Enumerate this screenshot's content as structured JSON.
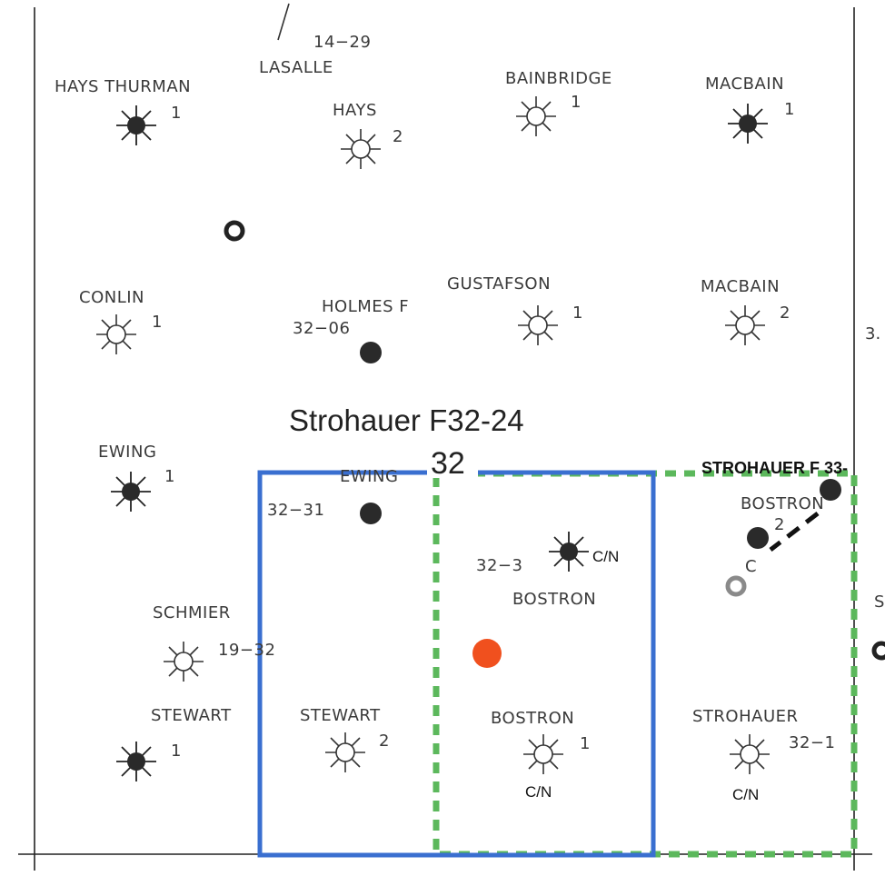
{
  "title": "Strohauer F32-24",
  "section_number": "32",
  "top_labels": {
    "township": "14−29",
    "lasalle": "LASALLE"
  },
  "edge_labels": {
    "right_top": "3.",
    "right_mid": "S"
  },
  "labels": {
    "hays_thurman": "HAYS THURMAN",
    "hays_thurman_num": "1",
    "hays": "HAYS",
    "hays_num": "2",
    "bainbridge": "BAINBRIDGE",
    "bainbridge_num": "1",
    "macbain_1": "MACBAIN",
    "macbain_1_num": "1",
    "conlin": "CONLIN",
    "conlin_num": "1",
    "holmes": "HOLMES F",
    "holmes_num": "32−06",
    "gustafson": "GUSTAFSON",
    "gustafson_num": "1",
    "macbain_2": "MACBAIN",
    "macbain_2_num": "2",
    "ewing_1": "EWING",
    "ewing_1_num": "1",
    "ewing_2": "EWING",
    "ewing_2_num": "32−31",
    "strohauer_f33": "STROHAUER F 33-",
    "bostron_right": "BOSTRON",
    "bostron_right_num": "2",
    "bostron_32_3_num": "32−3",
    "bostron_32_3_cn": "C/N",
    "bostron_32_3": "BOSTRON",
    "schmier": "SCHMIER",
    "schmier_num": "19−32",
    "stewart_1": "STEWART",
    "stewart_1_num": "1",
    "stewart_2": "STEWART",
    "stewart_2_num": "2",
    "bostron_1": "BOSTRON",
    "bostron_1_num": "1",
    "bostron_1_cn": "C/N",
    "strohauer": "STROHAUER",
    "strohauer_num": "32−1",
    "strohauer_cn": "C/N",
    "small_c": "C"
  },
  "colors": {
    "proposed_well": "#f0501e",
    "unit_outline": "#3a6fd0",
    "spacing_outline": "#5cb85c",
    "producing_well": "#2a2a2a",
    "plugged_well": "#8a8a8a"
  }
}
